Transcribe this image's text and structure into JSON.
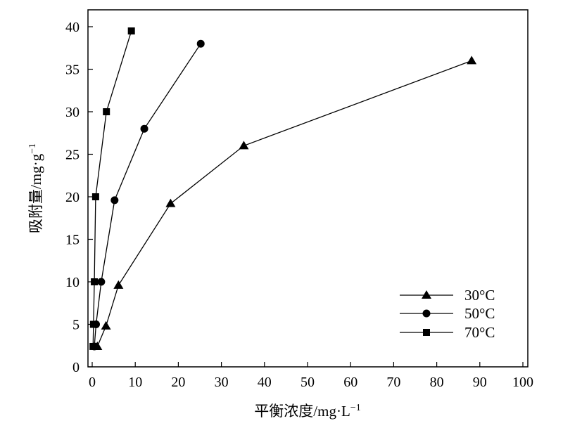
{
  "chart_data": {
    "type": "line",
    "xlabel": "平衡浓度/mg·L",
    "xlabel_sup": "−1",
    "ylabel": "吸附量/mg·g",
    "ylabel_sup": "−1",
    "xlim": [
      0,
      100
    ],
    "ylim": [
      0,
      40
    ],
    "xticks": [
      0,
      10,
      20,
      30,
      40,
      50,
      60,
      70,
      80,
      90,
      100
    ],
    "yticks": [
      0,
      5,
      10,
      15,
      20,
      25,
      30,
      35,
      40
    ],
    "grid": false,
    "legend_position": "bottom-right",
    "series": [
      {
        "name": "30°C",
        "marker": "triangle",
        "x": [
          1.2,
          3.2,
          6.1,
          18.2,
          35.2,
          88.1
        ],
        "y": [
          2.4,
          4.8,
          9.6,
          19.2,
          26.0,
          36.0
        ]
      },
      {
        "name": "50°C",
        "marker": "circle",
        "x": [
          0.5,
          0.9,
          2.1,
          5.2,
          12.1,
          25.2
        ],
        "y": [
          2.4,
          5.0,
          10.0,
          19.6,
          28.0,
          38.0
        ]
      },
      {
        "name": "70°C",
        "marker": "square",
        "x": [
          0.2,
          0.3,
          0.5,
          0.8,
          3.3,
          9.1
        ],
        "y": [
          2.4,
          5.0,
          10.0,
          20.0,
          30.0,
          39.5
        ]
      }
    ]
  }
}
